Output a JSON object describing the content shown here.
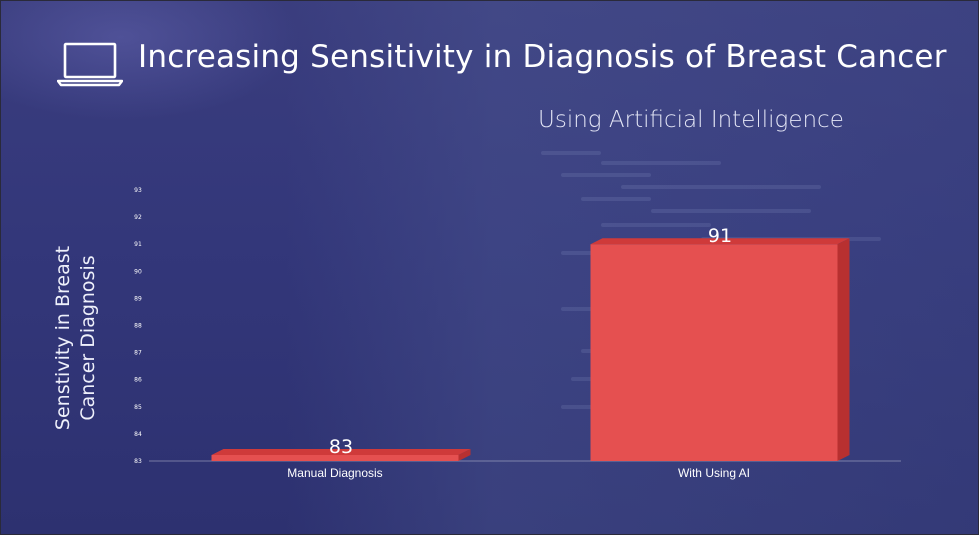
{
  "slide": {
    "title": "Increasing Sensitivity in Diagnosis of Breast Cancer",
    "icon": "laptop-icon"
  },
  "colors": {
    "bar": "#e55050",
    "bar_top": "#cf3a3a",
    "bar_side": "#b83030",
    "text": "#ffffff"
  },
  "chart_data": {
    "type": "bar",
    "title": "Using Artificial Intelligence",
    "xlabel": "",
    "ylabel": "Senstivity in Breast Cancer Diagnosis",
    "categories": [
      "Manual Diagnosis",
      "With Using AI"
    ],
    "values": [
      83,
      91
    ],
    "data_labels": [
      "83",
      "91"
    ],
    "ylim": [
      83,
      93
    ],
    "yticks": [
      83,
      84,
      85,
      86,
      87,
      88,
      89,
      90,
      91,
      92,
      93
    ],
    "grid": false,
    "legend": "none",
    "style": "3d"
  }
}
